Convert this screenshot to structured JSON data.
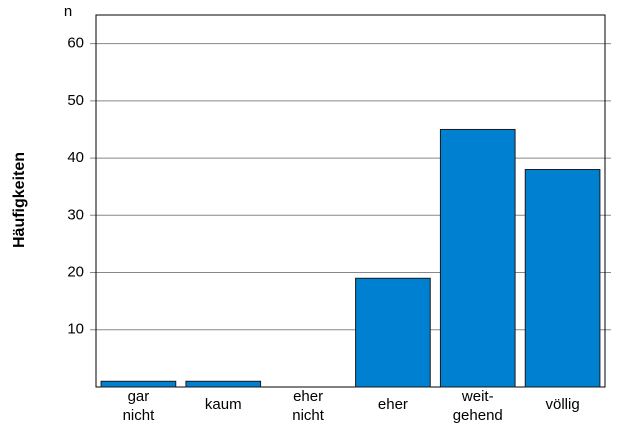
{
  "chart_data": {
    "type": "bar",
    "y_label": "Häufigkeiten",
    "y_unit": "n",
    "categories": [
      [
        "gar",
        "nicht"
      ],
      [
        "kaum"
      ],
      [
        "eher",
        "nicht"
      ],
      [
        "eher"
      ],
      [
        "weit-",
        "gehend"
      ],
      [
        "völlig"
      ]
    ],
    "values": [
      1,
      1,
      0,
      19,
      45,
      38
    ],
    "color": "#0080d0",
    "ylim": [
      0,
      65
    ],
    "yticks": [
      10,
      20,
      30,
      40,
      50,
      60
    ],
    "grid": true
  }
}
